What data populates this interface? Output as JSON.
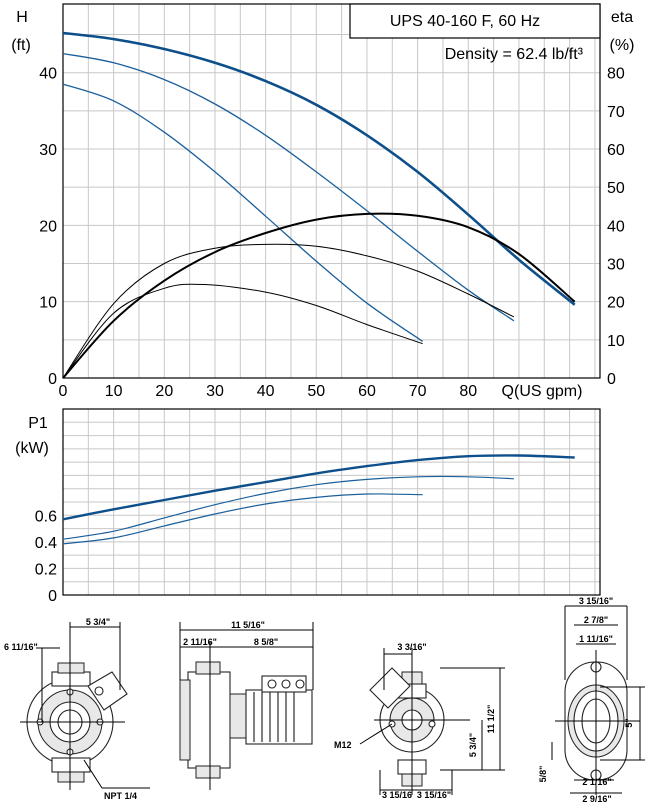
{
  "header": {
    "model": "UPS 40-160 F, 60 Hz",
    "density": "Density = 62.4 lb/ft³"
  },
  "axes": {
    "h_symbol": "H",
    "h_unit": "(ft)",
    "eta_symbol": "eta",
    "eta_unit": "(%)",
    "q_label": "Q(US gpm)",
    "p_symbol": "P1",
    "p_unit": "(kW)"
  },
  "chart_data": [
    {
      "type": "line",
      "title": "UPS 40-160 F, 60 Hz",
      "xlabel": "Q(US gpm)",
      "ylabel": "H (ft)",
      "y2label": "eta (%)",
      "xlim": [
        0,
        106
      ],
      "ylim": [
        0,
        49
      ],
      "y2lim": [
        0,
        98
      ],
      "x_ticks": [
        0,
        10,
        20,
        30,
        40,
        50,
        60,
        70,
        80
      ],
      "y_ticks": [
        0,
        10,
        20,
        30,
        40
      ],
      "y2_ticks": [
        0,
        10,
        20,
        30,
        40,
        50,
        60,
        70,
        80
      ],
      "grid": true,
      "series": [
        {
          "axis": "H",
          "color": "#0d4f8b",
          "width": 2.6,
          "x": [
            0,
            10,
            20,
            30,
            40,
            50,
            60,
            70,
            80,
            90,
            101
          ],
          "y": [
            45.2,
            44.4,
            43.1,
            41.3,
            38.9,
            35.8,
            31.8,
            27.0,
            21.4,
            15.5,
            9.6
          ]
        },
        {
          "axis": "H",
          "color": "#1a5f9c",
          "width": 1.3,
          "x": [
            0,
            10,
            20,
            30,
            40,
            50,
            60,
            70,
            80,
            89
          ],
          "y": [
            42.5,
            41.3,
            39.1,
            35.9,
            31.8,
            27.0,
            21.9,
            16.6,
            11.5,
            7.5
          ]
        },
        {
          "axis": "H",
          "color": "#1a5f9c",
          "width": 1.3,
          "x": [
            0,
            10,
            20,
            30,
            40,
            50,
            60,
            71
          ],
          "y": [
            38.5,
            36.3,
            32.2,
            27.0,
            21.2,
            15.3,
            9.8,
            4.8
          ]
        },
        {
          "axis": "eta",
          "color": "#000000",
          "width": 2.0,
          "x": [
            0,
            10,
            20,
            30,
            40,
            50,
            60,
            70,
            80,
            90,
            101
          ],
          "y": [
            0,
            15,
            25.5,
            33,
            38,
            41.5,
            43,
            42.5,
            39.5,
            32.5,
            20
          ]
        },
        {
          "axis": "eta",
          "color": "#000000",
          "width": 1.0,
          "x": [
            0,
            10,
            20,
            30,
            40,
            50,
            60,
            70,
            80,
            89
          ],
          "y": [
            0,
            19.5,
            30,
            34,
            35,
            34.5,
            32,
            28,
            22,
            16
          ]
        },
        {
          "axis": "eta",
          "color": "#000000",
          "width": 1.0,
          "x": [
            0,
            10,
            20,
            28,
            40,
            50,
            60,
            71
          ],
          "y": [
            0,
            17,
            23.5,
            24.5,
            22.5,
            19,
            14,
            9
          ]
        }
      ]
    },
    {
      "type": "line",
      "xlabel": "Q(US gpm)",
      "ylabel": "P1 (kW)",
      "xlim": [
        0,
        106
      ],
      "ylim": [
        0,
        1.4
      ],
      "y_ticks": [
        0,
        0.2,
        0.4,
        0.6
      ],
      "grid": true,
      "series": [
        {
          "color": "#0d4f8b",
          "width": 2.4,
          "x": [
            0,
            10,
            20,
            30,
            40,
            50,
            60,
            70,
            80,
            90,
            101
          ],
          "y": [
            0.57,
            0.645,
            0.715,
            0.785,
            0.85,
            0.915,
            0.97,
            1.015,
            1.045,
            1.05,
            1.035
          ]
        },
        {
          "color": "#1a5f9c",
          "width": 1.2,
          "x": [
            0,
            10,
            20,
            30,
            40,
            50,
            60,
            70,
            80,
            89
          ],
          "y": [
            0.42,
            0.48,
            0.58,
            0.68,
            0.765,
            0.83,
            0.87,
            0.89,
            0.89,
            0.875
          ]
        },
        {
          "color": "#1a5f9c",
          "width": 1.2,
          "x": [
            0,
            10,
            20,
            30,
            40,
            50,
            60,
            71
          ],
          "y": [
            0.385,
            0.43,
            0.52,
            0.61,
            0.685,
            0.735,
            0.76,
            0.755
          ]
        }
      ]
    }
  ],
  "dimensions": {
    "front_width": "5 3/4\"",
    "front_height": "6 11/16\"",
    "front_thread": "NPT 1/4",
    "side_total": "11 5/16\"",
    "side_left": "2 11/16\"",
    "side_right": "8 5/8\"",
    "end_top": "3 3/16\"",
    "end_height": "11 1/2\"",
    "end_half": "5 3/4\"",
    "end_bolt": "M12",
    "end_bottom_left": "3 15/16",
    "end_bottom_right": "3 15/16\"",
    "flange_w1": "3 15/16\"",
    "flange_w2": "2 7/8\"",
    "flange_w3": "1 11/16\"",
    "flange_height": "5\"",
    "flange_small": "5/8\"",
    "flange_b1": "2 1/16\"",
    "flange_b2": "2 9/16\""
  }
}
